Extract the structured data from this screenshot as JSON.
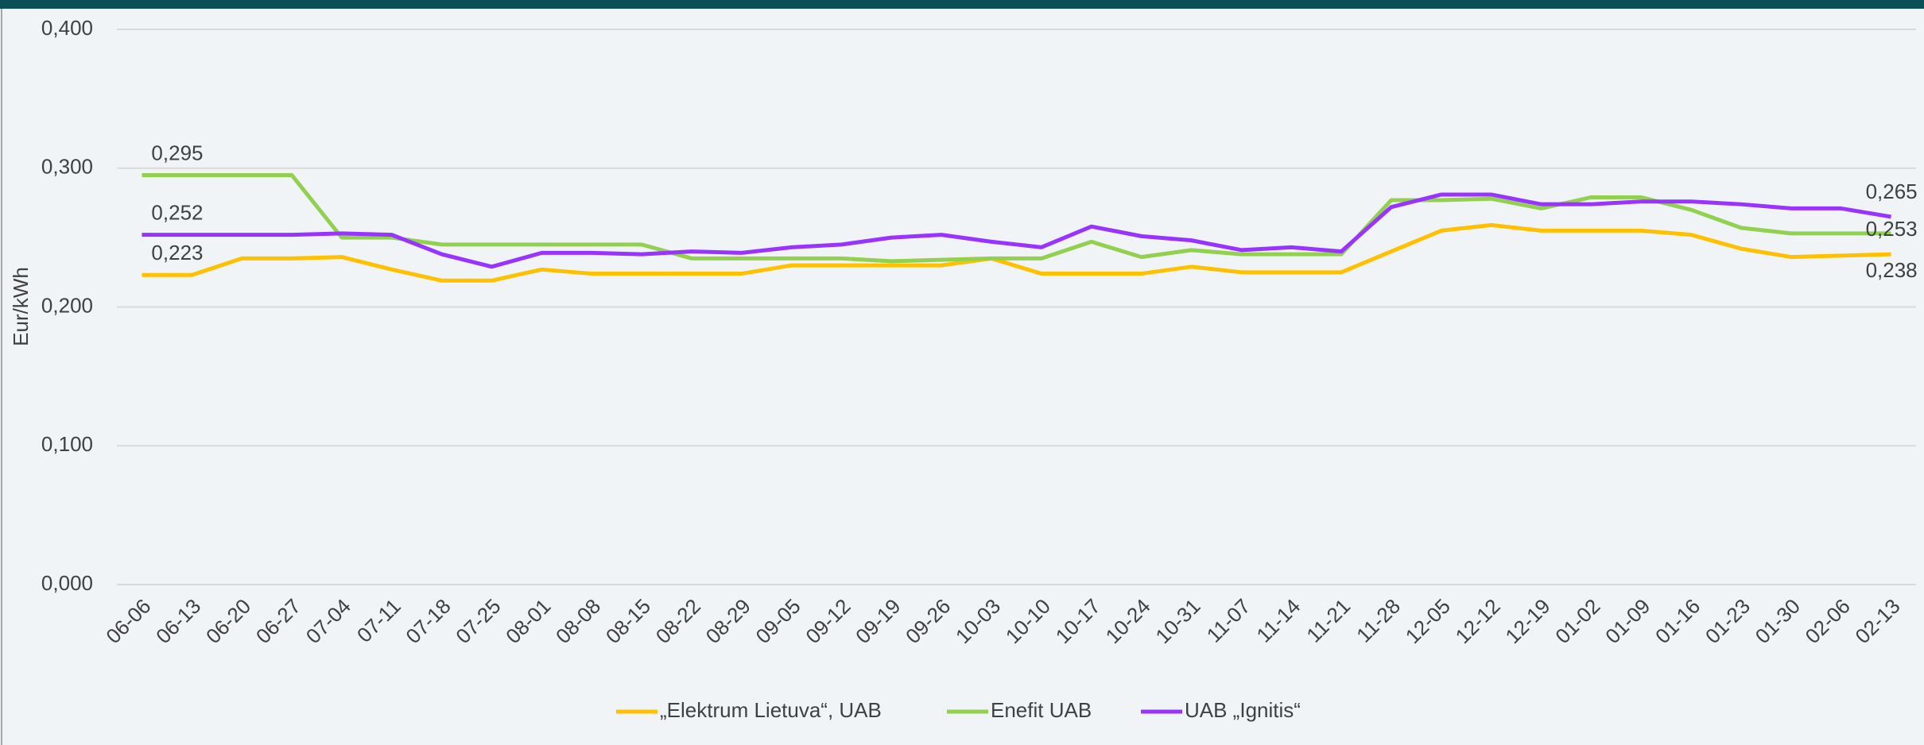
{
  "chart_data": {
    "type": "line",
    "y_label": "Eur/kWh",
    "categories": [
      "06-06",
      "06-13",
      "06-20",
      "06-27",
      "07-04",
      "07-11",
      "07-18",
      "07-25",
      "08-01",
      "08-08",
      "08-15",
      "08-22",
      "08-29",
      "09-05",
      "09-12",
      "09-19",
      "09-26",
      "10-03",
      "10-10",
      "10-17",
      "10-24",
      "10-31",
      "11-07",
      "11-14",
      "11-21",
      "11-28",
      "12-05",
      "12-12",
      "12-19",
      "01-02",
      "01-09",
      "01-16",
      "01-23",
      "01-30",
      "02-06",
      "02-13"
    ],
    "series": [
      {
        "name": "„Elektrum Lietuva“, UAB",
        "color": "#ffc000",
        "values": [
          0.223,
          0.223,
          0.235,
          0.235,
          0.236,
          0.227,
          0.219,
          0.219,
          0.227,
          0.224,
          0.224,
          0.224,
          0.224,
          0.23,
          0.23,
          0.23,
          0.23,
          0.235,
          0.224,
          0.224,
          0.224,
          0.229,
          0.225,
          0.225,
          0.225,
          0.24,
          0.255,
          0.259,
          0.255,
          0.255,
          0.255,
          0.252,
          0.242,
          0.236,
          0.237,
          0.238
        ],
        "value_labels": [
          "0,223",
          null,
          null,
          null,
          null,
          null,
          null,
          null,
          null,
          null,
          null,
          null,
          null,
          null,
          null,
          null,
          null,
          null,
          null,
          null,
          null,
          null,
          null,
          null,
          null,
          null,
          null,
          null,
          null,
          null,
          null,
          null,
          null,
          null,
          null,
          "0,238"
        ]
      },
      {
        "name": "Enefit UAB",
        "color": "#92d050",
        "values": [
          0.295,
          0.295,
          0.295,
          0.295,
          0.25,
          0.25,
          0.245,
          0.245,
          0.245,
          0.245,
          0.245,
          0.235,
          0.235,
          0.235,
          0.235,
          0.233,
          0.234,
          0.235,
          0.235,
          0.247,
          0.236,
          0.241,
          0.238,
          0.238,
          0.238,
          0.277,
          0.277,
          0.278,
          0.271,
          0.279,
          0.279,
          0.27,
          0.257,
          0.253,
          0.253,
          0.253
        ],
        "value_labels": [
          "0,295",
          null,
          null,
          null,
          null,
          null,
          null,
          null,
          null,
          null,
          null,
          null,
          null,
          null,
          null,
          null,
          null,
          null,
          null,
          null,
          null,
          null,
          null,
          null,
          null,
          null,
          null,
          null,
          null,
          null,
          null,
          null,
          null,
          null,
          null,
          "0,253"
        ]
      },
      {
        "name": "UAB „Ignitis“",
        "color": "#9933ff",
        "values": [
          0.252,
          0.252,
          0.252,
          0.252,
          0.253,
          0.252,
          0.238,
          0.229,
          0.239,
          0.239,
          0.238,
          0.24,
          0.239,
          0.243,
          0.245,
          0.25,
          0.252,
          0.247,
          0.243,
          0.258,
          0.251,
          0.248,
          0.241,
          0.243,
          0.24,
          0.272,
          0.281,
          0.281,
          0.274,
          0.274,
          0.276,
          0.276,
          0.274,
          0.271,
          0.271,
          0.265
        ],
        "value_labels": [
          "0,252",
          null,
          null,
          null,
          null,
          null,
          null,
          null,
          null,
          null,
          null,
          null,
          null,
          null,
          null,
          null,
          null,
          null,
          null,
          null,
          null,
          null,
          null,
          null,
          null,
          null,
          null,
          null,
          null,
          null,
          null,
          null,
          null,
          null,
          null,
          "0,265"
        ]
      }
    ],
    "ylim": [
      0,
      0.4
    ],
    "yticks": [
      {
        "value": 0,
        "label": "0,000"
      },
      {
        "value": 0.1,
        "label": "0,100"
      },
      {
        "value": 0.2,
        "label": "0,200"
      },
      {
        "value": 0.3,
        "label": "0,300"
      },
      {
        "value": 0.4,
        "label": "0,400"
      }
    ],
    "grid": true,
    "legend": "bottom"
  }
}
